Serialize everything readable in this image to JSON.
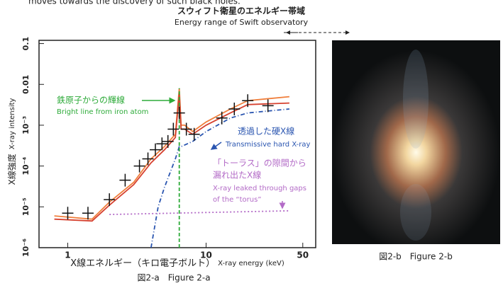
{
  "header": {
    "cut_text": "moves towards the discovery of such black holes.",
    "band_title": "スウィフト衛星のエネルギー帯域",
    "band_subtitle": "Energy range of Swift observatory"
  },
  "chart_data": {
    "type": "line",
    "ylabel_ja": "X線強度",
    "ylabel_en": "X-ray intensity",
    "xlabel_ja": "X線エネルギー（キロ電子ボルト）",
    "xlabel_en": "X-ray energy (keV)",
    "caption": "図2-a　Figure 2-a",
    "log_x": true,
    "log_y": true,
    "xlim": [
      0.62,
      62
    ],
    "ylim": [
      1e-06,
      0.12
    ],
    "xticks": [
      1,
      10,
      50
    ],
    "yticks": [
      {
        "value": 0.1,
        "label": "0.1"
      },
      {
        "value": 0.01,
        "label": "0.01"
      },
      {
        "value": 0.001,
        "label": "10⁻³"
      },
      {
        "value": 0.0001,
        "label": "10⁻⁴"
      },
      {
        "value": 1e-05,
        "label": "10⁻⁵"
      },
      {
        "value": 1e-06,
        "label": "10⁻⁶"
      }
    ],
    "series": [
      {
        "color": "#f07f3c",
        "x": [
          0.8,
          1.5,
          2,
          3,
          4,
          5,
          6,
          6.4,
          6.6,
          7,
          8,
          10,
          15,
          20,
          40
        ],
        "values": [
          6e-06,
          5e-06,
          1.3e-05,
          4e-05,
          0.00015,
          0.0003,
          0.0006,
          0.008,
          0.001,
          0.001,
          0.0007,
          0.0012,
          0.0025,
          0.004,
          0.005
        ]
      },
      {
        "color": "#d6412f",
        "x": [
          0.8,
          1.5,
          2,
          3,
          4,
          5,
          6,
          6.4,
          6.6,
          7,
          8,
          10,
          15,
          20,
          40
        ],
        "values": [
          5e-06,
          4.5e-06,
          1.1e-05,
          3.5e-05,
          0.00012,
          0.00025,
          0.0005,
          0.006,
          0.0008,
          0.0008,
          0.0006,
          0.001,
          0.002,
          0.0032,
          0.0035
        ]
      },
      {
        "color": "#2a55b0",
        "dash": "6 3 1 3",
        "x": [
          4,
          4.5,
          5,
          6,
          6.4,
          6.6,
          8,
          10,
          15,
          20,
          40
        ],
        "values": [
          1e-06,
          1e-05,
          3e-05,
          0.00015,
          0.0003,
          0.0003,
          0.0004,
          0.0007,
          0.0015,
          0.002,
          0.0025
        ]
      },
      {
        "color": "#2eab3a",
        "dash": "5 3",
        "x": [
          6.4,
          6.4
        ],
        "values": [
          1e-06,
          0.008
        ]
      },
      {
        "color": "#b36bc7",
        "dash": "2 3",
        "x": [
          2,
          40
        ],
        "values": [
          6.5e-06,
          8e-06
        ]
      }
    ],
    "points": {
      "color": "#111",
      "x": [
        1.0,
        1.4,
        2.0,
        2.6,
        3.3,
        3.8,
        4.3,
        4.8,
        5.3,
        5.8,
        6.4,
        7.2,
        8.2,
        13,
        16,
        20,
        28
      ],
      "values": [
        7e-06,
        7e-06,
        1.5e-05,
        4.5e-05,
        0.0001,
        0.00015,
        0.00025,
        0.00035,
        0.0004,
        0.0008,
        0.002,
        0.0008,
        0.0006,
        0.0015,
        0.0025,
        0.004,
        0.003
      ]
    },
    "annotations": [
      "鉄原子からの輝線",
      "Bright line from iron atom",
      "透過した硬X線",
      "Transmissive hard X-ray",
      "「トーラス」の隙間から",
      "漏れ出たX線",
      "X-ray leaked through gaps",
      "of the “torus”"
    ]
  },
  "image": {
    "caption": "図2-b　Figure 2-b"
  }
}
